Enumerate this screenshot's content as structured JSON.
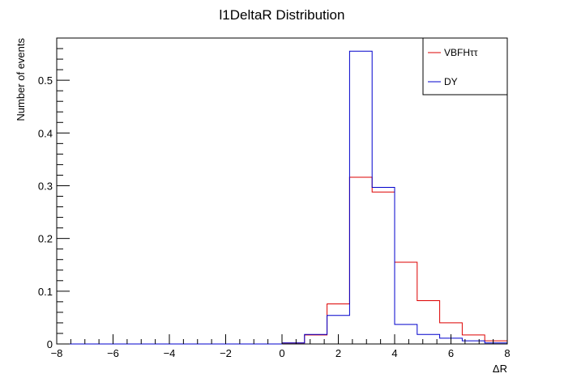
{
  "chart_data": {
    "type": "histogram",
    "title": "l1DeltaR Distribution",
    "xlabel": "ΔR",
    "ylabel": "Number of events",
    "xlim": [
      -8,
      8
    ],
    "ylim": [
      0,
      0.58
    ],
    "x_ticks": [
      -8,
      -6,
      -4,
      -2,
      0,
      2,
      4,
      6,
      8
    ],
    "y_ticks": [
      0,
      0.1,
      0.2,
      0.3,
      0.4,
      0.5
    ],
    "x_tick_labels": [
      "−8",
      "−6",
      "−4",
      "−2",
      "0",
      "2",
      "4",
      "6",
      "8"
    ],
    "y_tick_labels": [
      "0",
      "0.1",
      "0.2",
      "0.3",
      "0.4",
      "0.5"
    ],
    "bin_edges": [
      -8,
      -7.2,
      -6.4,
      -5.6,
      -4.8,
      -4,
      -3.2,
      -2.4,
      -1.6,
      -0.8,
      0,
      0.8,
      1.6,
      2.4,
      3.2,
      4,
      4.8,
      5.6,
      6.4,
      7.2,
      8
    ],
    "legend_position": "top-right",
    "series": [
      {
        "name": "VBFHττ",
        "color": "#dd0000",
        "values": [
          0,
          0,
          0,
          0,
          0,
          0,
          0,
          0,
          0,
          0,
          0.002,
          0.017,
          0.076,
          0.316,
          0.288,
          0.155,
          0.082,
          0.04,
          0.017,
          0.006
        ]
      },
      {
        "name": "DY",
        "color": "#0000cc",
        "values": [
          0,
          0,
          0,
          0,
          0,
          0,
          0,
          0,
          0,
          0,
          0.002,
          0.018,
          0.054,
          0.555,
          0.297,
          0.037,
          0.018,
          0.011,
          0.006,
          0.002
        ]
      }
    ]
  }
}
